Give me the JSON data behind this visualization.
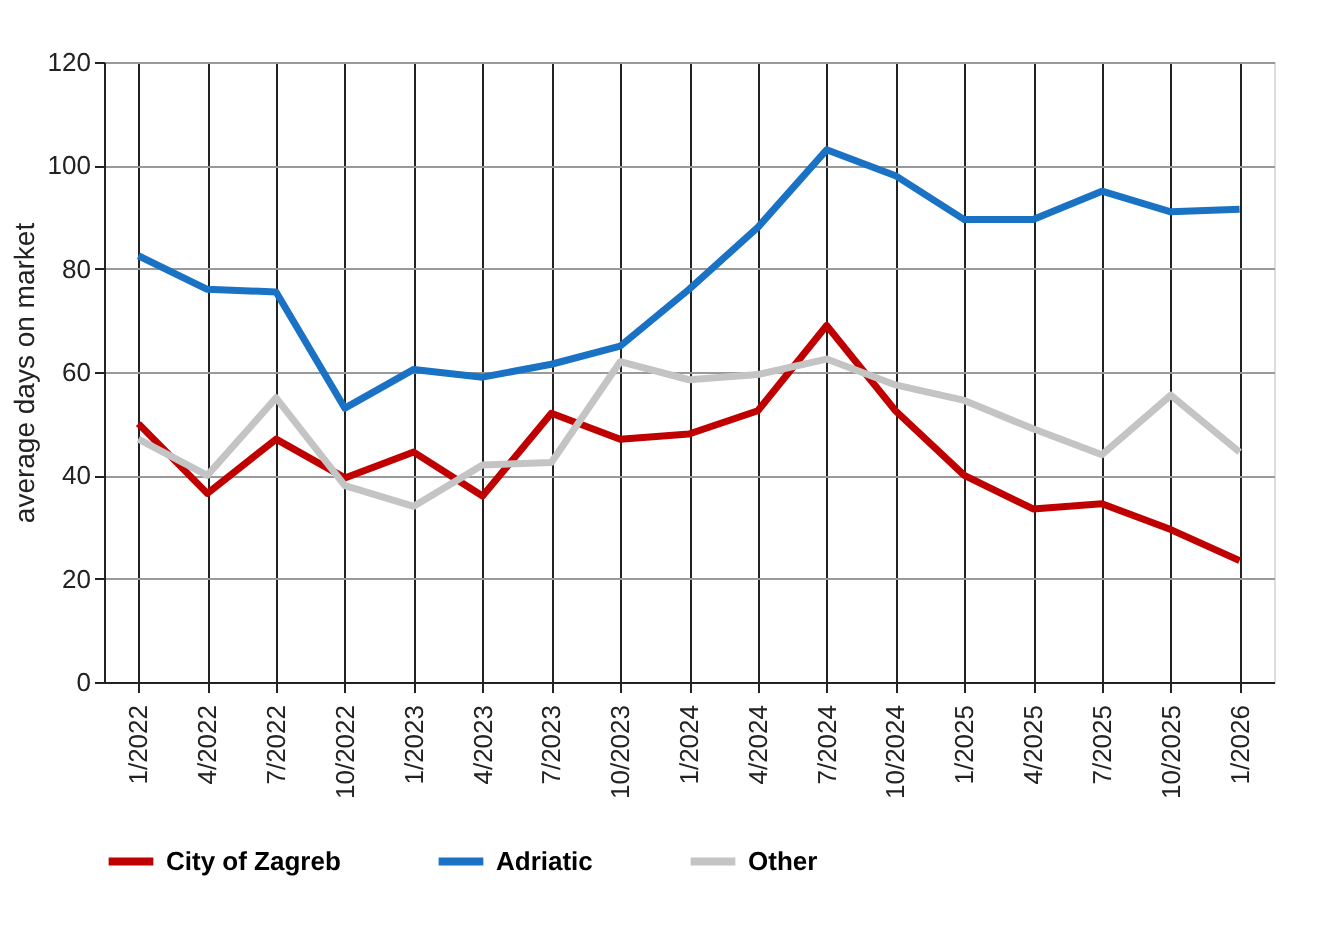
{
  "chart_data": {
    "type": "line",
    "ylabel": "average days on market",
    "categories": [
      "1/2022",
      "4/2022",
      "7/2022",
      "10/2022",
      "1/2023",
      "4/2023",
      "7/2023",
      "10/2023",
      "1/2024",
      "4/2024",
      "7/2024",
      "10/2024",
      "1/2025",
      "4/2025",
      "7/2025",
      "10/2025",
      "1/2026"
    ],
    "series": [
      {
        "name": "City of Zagreb",
        "color": "#c00000",
        "values": [
          50,
          36.5,
          47,
          39.5,
          44.5,
          36,
          52,
          47,
          48,
          52.5,
          69,
          52.5,
          40,
          33.5,
          34.5,
          29.5,
          23.5
        ]
      },
      {
        "name": "Adriatic",
        "color": "#1a72c4",
        "values": [
          82.5,
          76,
          75.5,
          53,
          60.5,
          59,
          61.5,
          65,
          76,
          88,
          103,
          98,
          89.5,
          89.5,
          95,
          91,
          91.5
        ]
      },
      {
        "name": "Other",
        "color": "#c4c4c4",
        "values": [
          47,
          40,
          55,
          38,
          34,
          42,
          42.5,
          62,
          58.5,
          59.5,
          62.5,
          57.5,
          54.5,
          49,
          44,
          55.5,
          44.5
        ]
      }
    ],
    "ylim": [
      0,
      120
    ],
    "yticks": [
      0,
      20,
      40,
      60,
      80,
      100,
      120
    ],
    "grid": true,
    "legend": "bottom",
    "marker": "none",
    "line_style": "solid"
  }
}
